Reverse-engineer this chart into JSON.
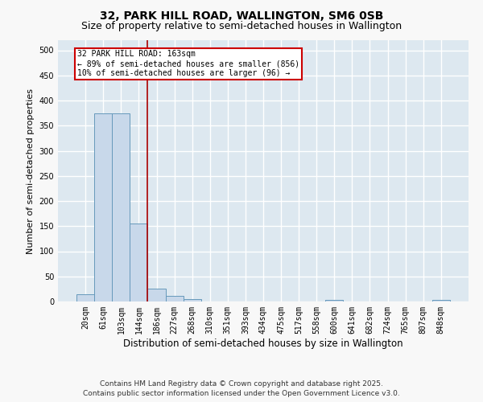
{
  "title1": "32, PARK HILL ROAD, WALLINGTON, SM6 0SB",
  "title2": "Size of property relative to semi-detached houses in Wallington",
  "xlabel": "Distribution of semi-detached houses by size in Wallington",
  "ylabel": "Number of semi-detached properties",
  "bin_labels": [
    "20sqm",
    "61sqm",
    "103sqm",
    "144sqm",
    "186sqm",
    "227sqm",
    "268sqm",
    "310sqm",
    "351sqm",
    "393sqm",
    "434sqm",
    "475sqm",
    "517sqm",
    "558sqm",
    "600sqm",
    "641sqm",
    "682sqm",
    "724sqm",
    "765sqm",
    "807sqm",
    "848sqm"
  ],
  "bar_values": [
    14,
    375,
    375,
    155,
    25,
    12,
    5,
    0,
    0,
    0,
    0,
    0,
    0,
    0,
    4,
    0,
    0,
    0,
    0,
    0,
    4
  ],
  "bar_color": "#c8d8ea",
  "bar_edge_color": "#6699bb",
  "property_line_x": 3.5,
  "annotation_title": "32 PARK HILL ROAD: 163sqm",
  "annotation_line1": "← 89% of semi-detached houses are smaller (856)",
  "annotation_line2": "10% of semi-detached houses are larger (96) →",
  "line_color": "#aa0000",
  "annotation_box_color": "#ffffff",
  "annotation_box_edge": "#cc0000",
  "footer1": "Contains HM Land Registry data © Crown copyright and database right 2025.",
  "footer2": "Contains public sector information licensed under the Open Government Licence v3.0.",
  "ylim": [
    0,
    520
  ],
  "yticks": [
    0,
    50,
    100,
    150,
    200,
    250,
    300,
    350,
    400,
    450,
    500
  ],
  "fig_bg": "#f8f8f8",
  "axes_bg": "#dde8f0",
  "grid_color": "#ffffff",
  "title1_fontsize": 10,
  "title2_fontsize": 9,
  "xlabel_fontsize": 8.5,
  "ylabel_fontsize": 8,
  "tick_fontsize": 7,
  "footer_fontsize": 6.5,
  "annot_fontsize": 7
}
